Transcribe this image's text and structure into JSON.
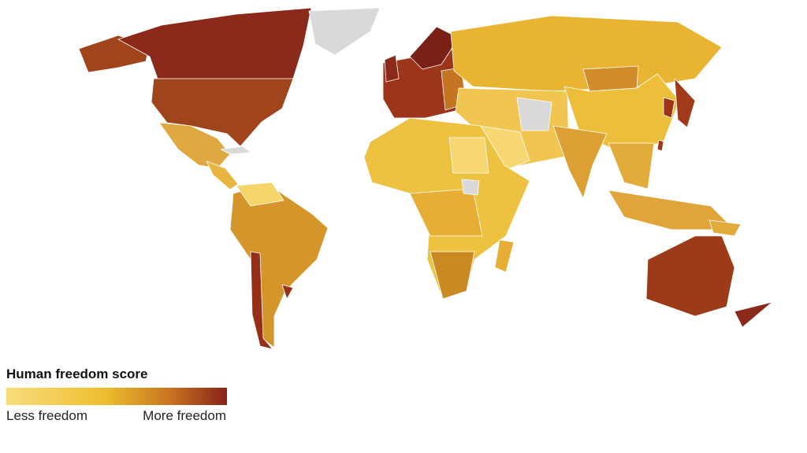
{
  "legend": {
    "title": "Human freedom score",
    "min_label": "Less freedom",
    "max_label": "More freedom"
  }
}
